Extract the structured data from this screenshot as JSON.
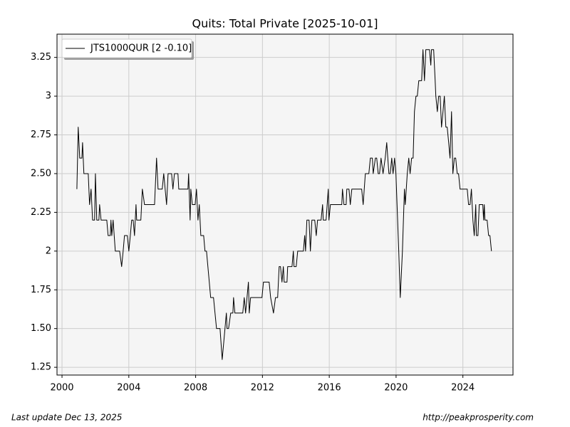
{
  "chart_data": {
    "type": "line",
    "title": "Quits: Total Private  [2025-10-01]",
    "footer_left": "Last update Dec 13, 2025",
    "footer_right": "http://peakprosperity.com",
    "legend": "upper left",
    "grid": true,
    "xlim": [
      1999.7,
      2027.0
    ],
    "ylim": [
      1.2,
      3.4
    ],
    "xticks": [
      2000,
      2004,
      2008,
      2012,
      2016,
      2020,
      2024
    ],
    "yticks": [
      1.25,
      {
        "value": 1.5,
        "label": "1.50"
      },
      1.75,
      2,
      2.25,
      {
        "value": 2.5,
        "label": "2.50"
      },
      2.75,
      3,
      3.25
    ],
    "x": [
      2000.89,
      2000.97,
      2001.06,
      2001.19,
      2001.23,
      2001.31,
      2001.57,
      2001.65,
      2001.74,
      2001.83,
      2001.95,
      2002.0,
      2002.08,
      2002.21,
      2002.25,
      2002.34,
      2002.68,
      2002.76,
      2002.89,
      2002.93,
      2002.98,
      2003.06,
      2003.19,
      2003.45,
      2003.57,
      2003.66,
      2003.74,
      2003.91,
      2004.0,
      2004.09,
      2004.17,
      2004.26,
      2004.34,
      2004.43,
      2004.47,
      2004.72,
      2004.81,
      2004.94,
      2005.54,
      2005.62,
      2005.66,
      2005.75,
      2006.0,
      2006.09,
      2006.26,
      2006.35,
      2006.56,
      2006.64,
      2006.73,
      2006.94,
      2006.99,
      2007.54,
      2007.58,
      2007.67,
      2007.71,
      2007.8,
      2007.97,
      2008.05,
      2008.14,
      2008.22,
      2008.31,
      2008.48,
      2008.56,
      2008.65,
      2008.9,
      2009.07,
      2009.25,
      2009.46,
      2009.59,
      2009.84,
      2009.88,
      2009.97,
      2010.1,
      2010.23,
      2010.27,
      2010.35,
      2010.82,
      2010.91,
      2010.99,
      2011.16,
      2011.21,
      2011.29,
      2011.97,
      2012.06,
      2012.4,
      2012.49,
      2012.66,
      2012.78,
      2012.91,
      2013.0,
      2013.08,
      2013.17,
      2013.25,
      2013.3,
      2013.47,
      2013.51,
      2013.77,
      2013.85,
      2013.89,
      2014.02,
      2014.11,
      2014.45,
      2014.53,
      2014.58,
      2014.66,
      2014.79,
      2014.87,
      2014.96,
      2015.13,
      2015.22,
      2015.3,
      2015.51,
      2015.6,
      2015.64,
      2015.81,
      2015.94,
      2015.98,
      2016.07,
      2016.58,
      2016.75,
      2016.79,
      2016.88,
      2017.01,
      2017.05,
      2017.18,
      2017.26,
      2017.35,
      2017.94,
      2018.03,
      2018.16,
      2018.37,
      2018.46,
      2018.58,
      2018.63,
      2018.76,
      2018.84,
      2018.93,
      2019.01,
      2019.1,
      2019.22,
      2019.35,
      2019.44,
      2019.57,
      2019.65,
      2019.74,
      2019.82,
      2019.91,
      2019.99,
      2020.16,
      2020.25,
      2020.38,
      2020.5,
      2020.55,
      2020.67,
      2020.76,
      2020.84,
      2020.93,
      2021.02,
      2021.1,
      2021.19,
      2021.27,
      2021.36,
      2021.53,
      2021.61,
      2021.7,
      2021.78,
      2022.0,
      2022.08,
      2022.12,
      2022.25,
      2022.34,
      2022.38,
      2022.47,
      2022.55,
      2022.64,
      2022.72,
      2022.81,
      2022.89,
      2022.98,
      2023.06,
      2023.15,
      2023.23,
      2023.32,
      2023.4,
      2023.49,
      2023.57,
      2023.66,
      2023.74,
      2023.83,
      2024.26,
      2024.34,
      2024.43,
      2024.51,
      2024.6,
      2024.68,
      2024.77,
      2024.81,
      2024.9,
      2024.98,
      2025.19,
      2025.24,
      2025.28,
      2025.32,
      2025.45,
      2025.54,
      2025.62,
      2025.71
    ],
    "series": [
      {
        "name": "JTS1000QUR [2 -0.10]",
        "color": "#000000",
        "values": [
          2.4,
          2.8,
          2.6,
          2.6,
          2.7,
          2.5,
          2.5,
          2.3,
          2.4,
          2.2,
          2.2,
          2.5,
          2.2,
          2.2,
          2.3,
          2.2,
          2.2,
          2.1,
          2.1,
          2.2,
          2.1,
          2.2,
          2.0,
          2.0,
          1.9,
          2.0,
          2.1,
          2.1,
          2.0,
          2.1,
          2.2,
          2.2,
          2.1,
          2.3,
          2.2,
          2.2,
          2.4,
          2.3,
          2.3,
          2.5,
          2.6,
          2.4,
          2.4,
          2.5,
          2.3,
          2.5,
          2.5,
          2.4,
          2.5,
          2.5,
          2.4,
          2.4,
          2.5,
          2.2,
          2.4,
          2.3,
          2.3,
          2.4,
          2.2,
          2.3,
          2.1,
          2.1,
          2.0,
          2.0,
          1.7,
          1.7,
          1.5,
          1.5,
          1.3,
          1.6,
          1.5,
          1.5,
          1.6,
          1.6,
          1.7,
          1.6,
          1.6,
          1.7,
          1.6,
          1.8,
          1.6,
          1.7,
          1.7,
          1.8,
          1.8,
          1.7,
          1.6,
          1.7,
          1.7,
          1.9,
          1.9,
          1.8,
          1.9,
          1.8,
          1.8,
          1.9,
          1.9,
          2.0,
          1.9,
          1.9,
          2.0,
          2.0,
          2.1,
          2.0,
          2.2,
          2.2,
          2.0,
          2.2,
          2.2,
          2.1,
          2.2,
          2.2,
          2.3,
          2.2,
          2.2,
          2.4,
          2.2,
          2.3,
          2.3,
          2.3,
          2.4,
          2.3,
          2.3,
          2.4,
          2.4,
          2.3,
          2.4,
          2.4,
          2.3,
          2.5,
          2.5,
          2.6,
          2.6,
          2.5,
          2.6,
          2.6,
          2.5,
          2.5,
          2.6,
          2.5,
          2.6,
          2.7,
          2.5,
          2.5,
          2.6,
          2.5,
          2.6,
          2.5,
          2.0,
          1.7,
          2.0,
          2.4,
          2.3,
          2.5,
          2.6,
          2.5,
          2.6,
          2.6,
          2.9,
          3.0,
          3.0,
          3.1,
          3.1,
          3.3,
          3.1,
          3.3,
          3.3,
          3.2,
          3.3,
          3.3,
          3.1,
          3.0,
          2.9,
          3.0,
          3.0,
          2.8,
          2.9,
          3.0,
          2.8,
          2.8,
          2.7,
          2.6,
          2.9,
          2.5,
          2.6,
          2.6,
          2.5,
          2.5,
          2.4,
          2.4,
          2.3,
          2.3,
          2.4,
          2.2,
          2.1,
          2.3,
          2.1,
          2.1,
          2.3,
          2.3,
          2.2,
          2.3,
          2.2,
          2.2,
          2.1,
          2.1,
          2.0
        ]
      }
    ]
  }
}
